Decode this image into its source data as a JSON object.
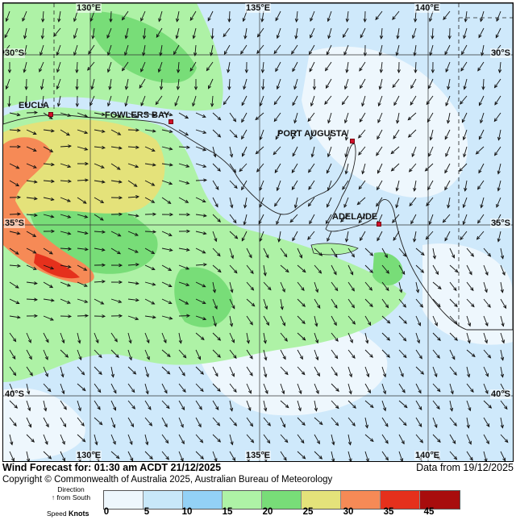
{
  "map": {
    "lon_labels": [
      "130°E",
      "135°E",
      "140°E"
    ],
    "lat_labels": [
      "30°S",
      "35°S",
      "40°S"
    ],
    "places": [
      {
        "name": "EUCLA"
      },
      {
        "name": "FOWLERS BAY"
      },
      {
        "name": "PORT AUGUSTA"
      },
      {
        "name": "ADELAIDE"
      }
    ]
  },
  "footer": {
    "forecast_text": "Wind Forecast for: 01:30 am ACDT 21/12/2025",
    "data_from": "Data from 19/12/2025",
    "copyright": "Copyright © Commonwealth of Australia 2025, Australian Bureau of Meteorology"
  },
  "legend": {
    "direction_label": "Direction",
    "direction_hint": "↑ from South",
    "speed_label": "Speed",
    "units": "Knots",
    "ticks": [
      "0",
      "5",
      "10",
      "15",
      "20",
      "25",
      "30",
      "35",
      "45"
    ],
    "colors": [
      "#eef7fd",
      "#c8e8f9",
      "#93d1f6",
      "#aef2a6",
      "#78dd78",
      "#e4e27a",
      "#f68a56",
      "#e5301c",
      "#a80d0d"
    ]
  }
}
